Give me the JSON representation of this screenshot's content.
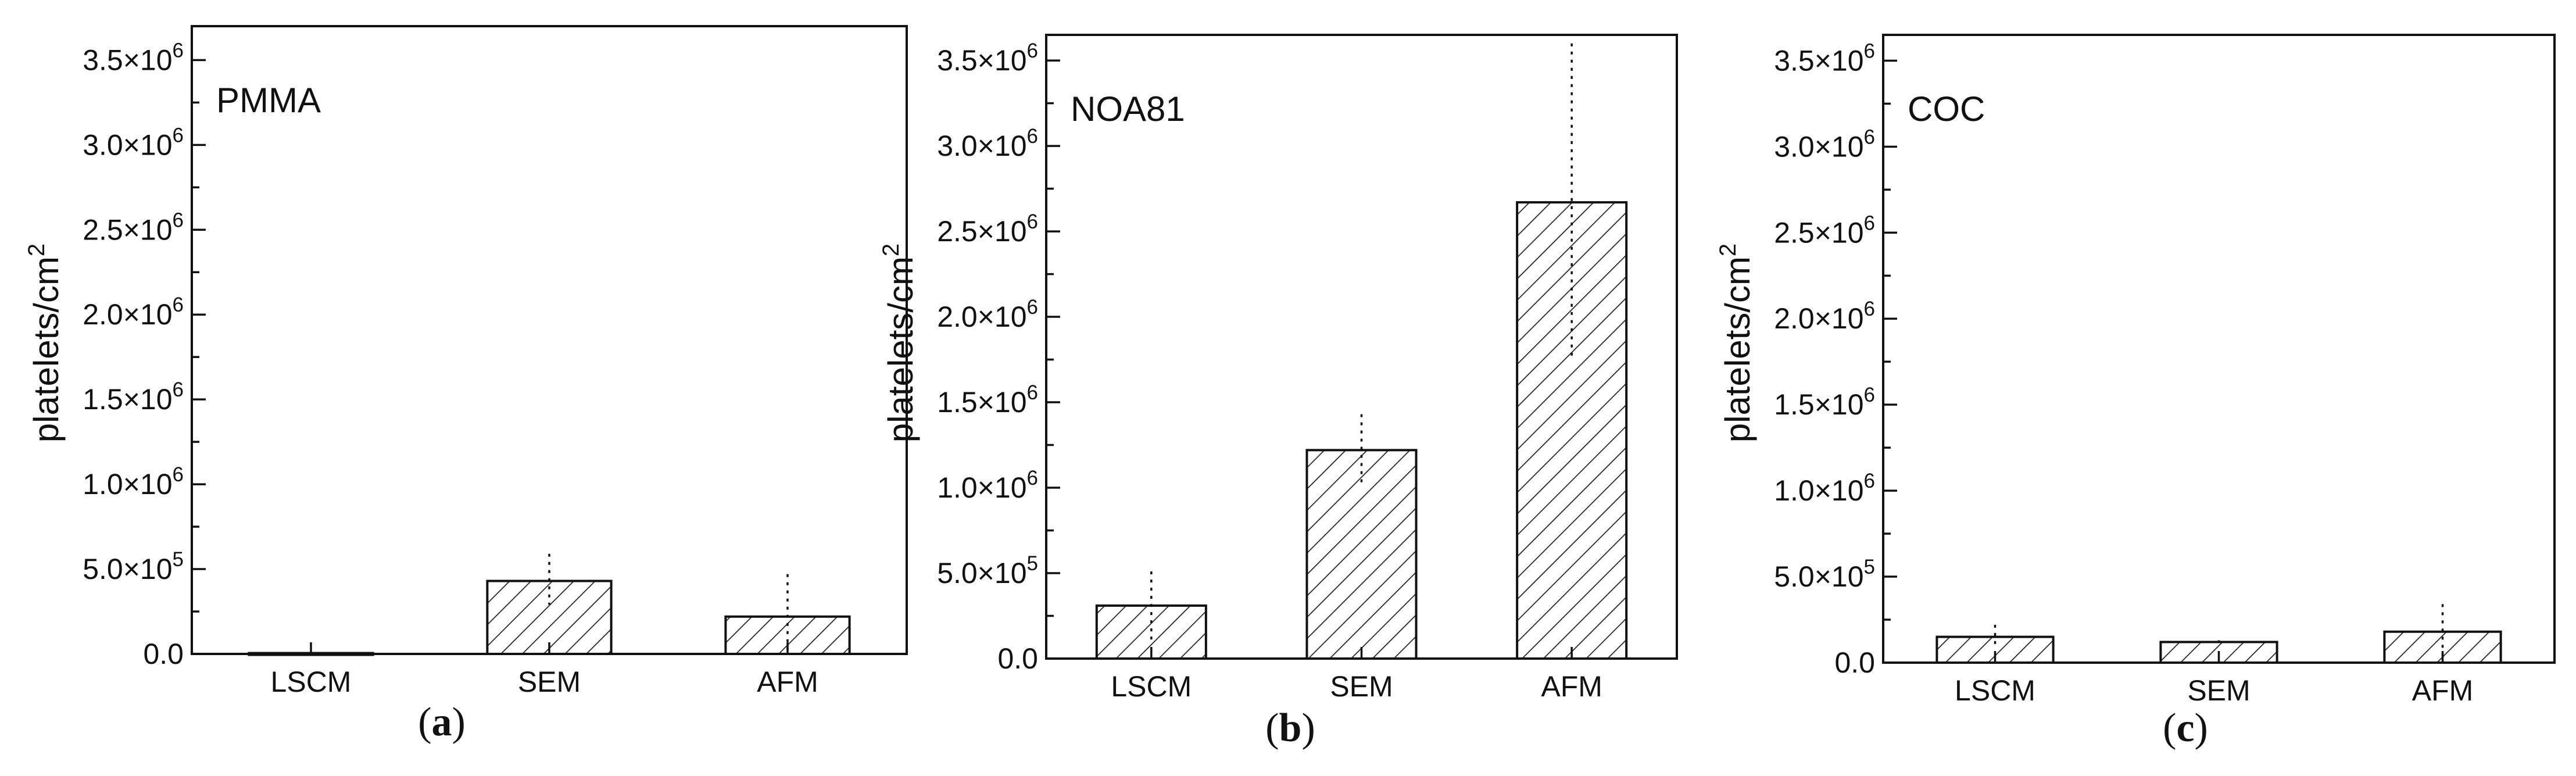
{
  "colors": {
    "axis": "#111111",
    "bar_hatch": "#222222",
    "background": "#ffffff"
  },
  "chart_data": [
    {
      "type": "bar",
      "title": "PMMA",
      "panel_label": "a",
      "ylabel": "platelets/cm",
      "ylabel_superscript": "2",
      "categories": [
        "LSCM",
        "SEM",
        "AFM"
      ],
      "values": [
        5000,
        430000,
        220000
      ],
      "error_upper": [
        5000,
        590000,
        470000
      ],
      "error_lower": [
        5000,
        290000,
        0
      ],
      "ylim": [
        0,
        3700000
      ],
      "yticks": [
        0,
        500000,
        1000000,
        1500000,
        2000000,
        2500000,
        3000000,
        3500000
      ],
      "ytick_labels": [
        {
          "text": "0.0"
        },
        {
          "text": "5.0×10",
          "sup": "5"
        },
        {
          "text": "1.0×10",
          "sup": "6"
        },
        {
          "text": "1.5×10",
          "sup": "6"
        },
        {
          "text": "2.0×10",
          "sup": "6"
        },
        {
          "text": "2.5×10",
          "sup": "6"
        },
        {
          "text": "3.0×10",
          "sup": "6"
        },
        {
          "text": "3.5×10",
          "sup": "6"
        }
      ],
      "grid": false,
      "fill": "hatched"
    },
    {
      "type": "bar",
      "title": "NOA81",
      "panel_label": "b",
      "ylabel": "platelets/cm",
      "ylabel_superscript": "2",
      "categories": [
        "LSCM",
        "SEM",
        "AFM"
      ],
      "values": [
        310000,
        1220000,
        2670000
      ],
      "error_upper": [
        510000,
        1430000,
        3600000
      ],
      "error_lower": [
        110000,
        1010000,
        1750000
      ],
      "ylim": [
        0,
        3650000
      ],
      "yticks": [
        0,
        500000,
        1000000,
        1500000,
        2000000,
        2500000,
        3000000,
        3500000
      ],
      "ytick_labels": [
        {
          "text": "0.0"
        },
        {
          "text": "5.0×10",
          "sup": "5"
        },
        {
          "text": "1.0×10",
          "sup": "6"
        },
        {
          "text": "1.5×10",
          "sup": "6"
        },
        {
          "text": "2.0×10",
          "sup": "6"
        },
        {
          "text": "2.5×10",
          "sup": "6"
        },
        {
          "text": "3.0×10",
          "sup": "6"
        },
        {
          "text": "3.5×10",
          "sup": "6"
        }
      ],
      "grid": false,
      "fill": "hatched"
    },
    {
      "type": "bar",
      "title": "COC",
      "panel_label": "c",
      "ylabel": "platelets/cm",
      "ylabel_superscript": "2",
      "categories": [
        "LSCM",
        "SEM",
        "AFM"
      ],
      "values": [
        150000,
        120000,
        180000
      ],
      "error_upper": [
        220000,
        130000,
        340000
      ],
      "error_lower": [
        80000,
        110000,
        20000
      ],
      "ylim": [
        0,
        3650000
      ],
      "yticks": [
        0,
        500000,
        1000000,
        1500000,
        2000000,
        2500000,
        3000000,
        3500000
      ],
      "ytick_labels": [
        {
          "text": "0.0"
        },
        {
          "text": "5.0×10",
          "sup": "5"
        },
        {
          "text": "1.0×10",
          "sup": "6"
        },
        {
          "text": "1.5×10",
          "sup": "6"
        },
        {
          "text": "2.0×10",
          "sup": "6"
        },
        {
          "text": "2.5×10",
          "sup": "6"
        },
        {
          "text": "3.0×10",
          "sup": "6"
        },
        {
          "text": "3.5×10",
          "sup": "6"
        }
      ],
      "grid": false,
      "fill": "hatched"
    }
  ]
}
